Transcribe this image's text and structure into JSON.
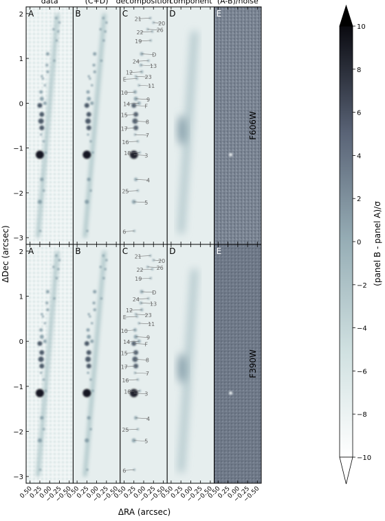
{
  "figure": {
    "column_titles": [
      "data",
      "(C+D)",
      "decomposition",
      "component",
      "(A-B)/noise"
    ],
    "panel_letters": [
      "A",
      "B",
      "C",
      "D",
      "E"
    ],
    "row_filters": [
      "F606W",
      "F390W"
    ],
    "xlabel": "ΔRA (arcsec)",
    "ylabel": "ΔDec (arcsec)",
    "colorbar_label": "(panel B - panel A)/σ"
  },
  "chart_data": {
    "type": "heatmap",
    "xlim": [
      0.6,
      -0.6
    ],
    "ylim": [
      -3.15,
      2.15
    ],
    "xticks": [
      0.5,
      0.25,
      0.0,
      -0.25,
      -0.5
    ],
    "xtick_labels": [
      "0.50",
      "0.25",
      "0.00",
      "−0.25",
      "−0.50"
    ],
    "yticks": [
      -3,
      -2,
      -1,
      0,
      1,
      2
    ],
    "ytick_labels": [
      "−3",
      "−2",
      "−1",
      "0",
      "1",
      "2"
    ],
    "colorbar": {
      "range": [
        -10,
        10
      ],
      "ticks": [
        10,
        8,
        6,
        4,
        2,
        0,
        -2,
        -4,
        -6,
        -8,
        -10
      ],
      "tick_labels": [
        "10",
        "8",
        "6",
        "4",
        "2",
        "0",
        "−2",
        "−4",
        "−6",
        "−8",
        "−10"
      ],
      "extend": "both",
      "colormap": "bone_r"
    },
    "arc": {
      "ra_top": -0.2,
      "dec_top": 2.0,
      "ra_bottom": 0.3,
      "dec_bottom": -3.0
    },
    "component_D": {
      "ra_top": -0.1,
      "dec_top": 1.6,
      "ra_bottom": 0.25,
      "dec_bottom": -2.9
    },
    "clumps": [
      {
        "id": "21",
        "ra": -0.17,
        "dec": 1.9
      },
      {
        "id": "20",
        "ra": -0.25,
        "dec": 1.8
      },
      {
        "id": "22",
        "ra": -0.22,
        "dec": 1.6
      },
      {
        "id": "26",
        "ra": -0.1,
        "dec": 1.65
      },
      {
        "id": "19",
        "ra": -0.18,
        "dec": 1.4
      },
      {
        "id": "D",
        "ra": 0.05,
        "dec": 1.1
      },
      {
        "id": "24",
        "ra": -0.12,
        "dec": 0.95
      },
      {
        "id": "13",
        "ra": 0.07,
        "dec": 0.85
      },
      {
        "id": "12",
        "ra": 0.05,
        "dec": 0.7
      },
      {
        "id": "23",
        "ra": 0.2,
        "dec": 0.6
      },
      {
        "id": "E",
        "ra": 0.17,
        "dec": 0.55
      },
      {
        "id": "11",
        "ra": 0.12,
        "dec": 0.4
      },
      {
        "id": "10",
        "ra": 0.22,
        "dec": 0.25
      },
      {
        "id": "9",
        "ra": 0.2,
        "dec": 0.1
      },
      {
        "id": "14",
        "ra": 0.12,
        "dec": 0.0
      },
      {
        "id": "F",
        "ra": 0.25,
        "dec": -0.05
      },
      {
        "id": "15",
        "ra": 0.2,
        "dec": -0.25
      },
      {
        "id": "8",
        "ra": 0.22,
        "dec": -0.4
      },
      {
        "id": "17",
        "ra": 0.2,
        "dec": -0.55
      },
      {
        "id": "7",
        "ra": 0.22,
        "dec": -0.7
      },
      {
        "id": "16",
        "ra": 0.15,
        "dec": -0.85
      },
      {
        "id": "3",
        "ra": 0.25,
        "dec": -1.15
      },
      {
        "id": "18",
        "ra": 0.1,
        "dec": -1.1
      },
      {
        "id": "4",
        "ra": 0.2,
        "dec": -1.7
      },
      {
        "id": "25",
        "ra": 0.15,
        "dec": -1.95
      },
      {
        "id": "5",
        "ra": 0.25,
        "dec": -2.2
      },
      {
        "id": "6",
        "ra": 0.24,
        "dec": -2.85
      }
    ]
  }
}
